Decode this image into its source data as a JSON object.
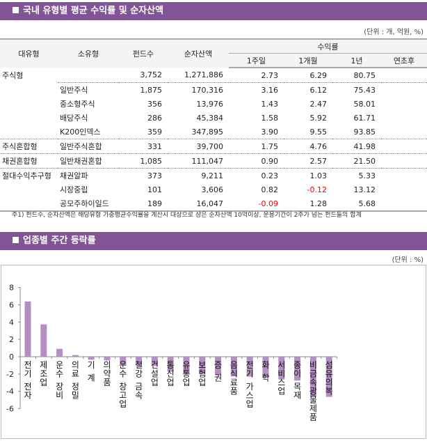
{
  "section1": {
    "title": "국내 유형별 평균 수익률 및 순자산액",
    "unit": "(단위 : 개, 억원, %)"
  },
  "table": {
    "headers": {
      "major": "대유형",
      "minor": "소유형",
      "funds": "펀드수",
      "nav": "순자산액",
      "returns": "수익률",
      "w1": "1주일",
      "m1": "1개월",
      "y1": "1년",
      "ytd": "연초후"
    },
    "rows": [
      {
        "major": "주식형",
        "minor": "",
        "funds": "3,752",
        "nav": "1,271,886",
        "w1": "2.73",
        "m1": "6.29",
        "y1": "80.75",
        "ytd": ""
      },
      {
        "major": "",
        "minor": "일반주식",
        "funds": "1,875",
        "nav": "170,316",
        "w1": "3.16",
        "m1": "6.12",
        "y1": "75.43",
        "ytd": ""
      },
      {
        "major": "",
        "minor": "중소형주식",
        "funds": "356",
        "nav": "13,976",
        "w1": "1.43",
        "m1": "2.47",
        "y1": "58.01",
        "ytd": ""
      },
      {
        "major": "",
        "minor": "배당주식",
        "funds": "286",
        "nav": "45,384",
        "w1": "1.58",
        "m1": "5.92",
        "y1": "61.71",
        "ytd": ""
      },
      {
        "major": "",
        "minor": "K200인덱스",
        "funds": "359",
        "nav": "347,895",
        "w1": "3.90",
        "m1": "9.55",
        "y1": "93.85",
        "ytd": ""
      },
      {
        "major": "주식혼합형",
        "minor": "일반주식혼합",
        "funds": "331",
        "nav": "39,700",
        "w1": "1.75",
        "m1": "4.76",
        "y1": "41.98",
        "ytd": ""
      },
      {
        "major": "채권혼합형",
        "minor": "일반채권혼합",
        "funds": "1,085",
        "nav": "111,047",
        "w1": "0.90",
        "m1": "2.57",
        "y1": "21.50",
        "ytd": ""
      },
      {
        "major": "절대수익추구형",
        "minor": "채권알파",
        "funds": "373",
        "nav": "9,211",
        "w1": "0.23",
        "m1": "1.03",
        "y1": "5.33",
        "ytd": ""
      },
      {
        "major": "",
        "minor": "시장중립",
        "funds": "101",
        "nav": "3,606",
        "w1": "0.82",
        "m1": "-0.12",
        "y1": "13.12",
        "ytd": ""
      },
      {
        "major": "",
        "minor": "공모주하이일드",
        "funds": "189",
        "nav": "16,047",
        "w1": "-0.09",
        "m1": "1.28",
        "y1": "5.68",
        "ytd": ""
      }
    ],
    "note": "주1) 펀드수, 순자산액은 해당유형 가중평균수익률을 계산시 대상으로 삼은 순자산액 10억이상, 운용기간이 2주가 넘는 펀드들의 합계"
  },
  "section2": {
    "title": "업종별 주간 등락률",
    "unit": "(단위 : %)"
  },
  "colors": {
    "header_bar": "#825496",
    "bar": "#b48fc4",
    "negative": "#ee0000"
  },
  "chart_data": {
    "type": "bar",
    "categories": [
      "전기 전자",
      "제조업",
      "운수 장비",
      "의료 정밀",
      "기 계",
      "의약품",
      "운수 창고업",
      "철강 금속",
      "건설업",
      "통신업",
      "유통업",
      "보험업",
      "증 권",
      "음식료품",
      "전기 가스업",
      "화 학",
      "서비스업",
      "종이 목재",
      "비금속광물제품",
      "섬유의복"
    ],
    "values": [
      6.38,
      3.73,
      0.91,
      0.19,
      -0.35,
      -0.43,
      -0.94,
      -1.0,
      -1.07,
      -1.74,
      -1.96,
      -1.98,
      -2.12,
      -2.28,
      -2.31,
      -2.39,
      -2.63,
      -2.76,
      -4.64,
      -4.64
    ],
    "yticks": [
      "8",
      "6",
      "4",
      "2",
      "0",
      "-2",
      "-4",
      "-6"
    ],
    "ylim": [
      -6,
      8
    ],
    "grid": false,
    "legend": "none"
  }
}
